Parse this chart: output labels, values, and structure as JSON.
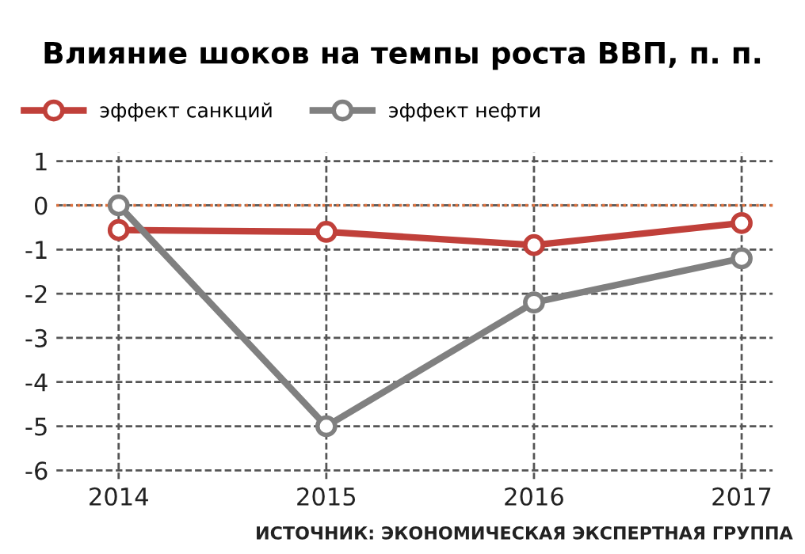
{
  "chart_data": {
    "type": "line",
    "title": "Влияние шоков на темпы роста ВВП, п. п.",
    "categories": [
      "2014",
      "2015",
      "2016",
      "2017"
    ],
    "series": [
      {
        "name": "эффект санкций",
        "color": "#c0403a",
        "values": [
          -0.56,
          -0.6,
          -0.9,
          -0.4
        ]
      },
      {
        "name": "эффект нефти",
        "color": "#808080",
        "values": [
          0,
          -5.0,
          -2.2,
          -1.2
        ]
      }
    ],
    "ylim": [
      -6.2,
      1.2
    ],
    "yticks": [
      -6,
      -5,
      -4,
      -3,
      -2,
      -1,
      0,
      1
    ],
    "ref_lines": [
      {
        "axis": "y",
        "value": 0,
        "color": "#e0703a",
        "line_style": "dotted"
      }
    ],
    "grid": true,
    "legend": "top left",
    "marker": "circle",
    "line_style": "solid",
    "annotations": [
      "ИСТОЧНИК: ЭКОНОМИЧЕСКАЯ ЭКСПЕРТНАЯ ГРУППА"
    ]
  }
}
